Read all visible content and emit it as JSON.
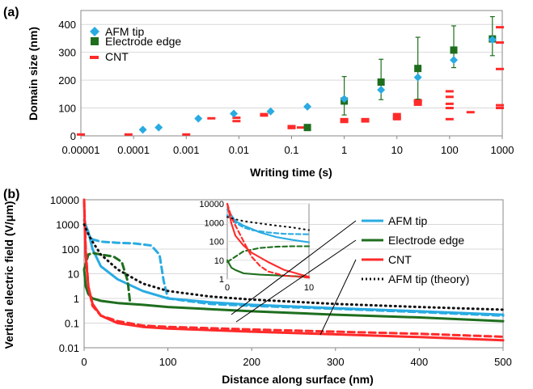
{
  "colors": {
    "afm": "#29abe2",
    "electrode": "#1e6e1e",
    "cnt": "#ff2a2a",
    "theory": "#111111"
  },
  "chart_data": [
    {
      "type": "scatter",
      "panel_label": "(a)",
      "xlabel": "Writing time (s)",
      "ylabel": "Domain size (nm)",
      "xscale": "log",
      "xlim": [
        1e-05,
        1000
      ],
      "ylim": [
        0,
        450
      ],
      "x_ticks": [
        "0.00001",
        "0.0001",
        "0.001",
        "0.01",
        "0.1",
        "1",
        "10",
        "100",
        "1000"
      ],
      "y_ticks": [
        "0",
        "100",
        "200",
        "300",
        "400"
      ],
      "legend": [
        "AFM tip",
        "Electrode edge",
        "CNT"
      ],
      "series": [
        {
          "name": "AFM tip",
          "marker": "diamond",
          "points": [
            [
              0.00015,
              22
            ],
            [
              0.0003,
              30
            ],
            [
              0.0017,
              62
            ],
            [
              0.008,
              80
            ],
            [
              0.04,
              88
            ],
            [
              0.2,
              105
            ],
            [
              1,
              133
            ],
            [
              5,
              165
            ],
            [
              25,
              210
            ],
            [
              120,
              272
            ],
            [
              650,
              345
            ]
          ]
        },
        {
          "name": "Electrode edge",
          "marker": "square",
          "points": [
            [
              0.2,
              30,
              0,
              0
            ],
            [
              1,
              125,
              50,
              88
            ],
            [
              5,
              193,
              63,
              82
            ],
            [
              25,
              242,
              110,
              112
            ],
            [
              120,
              308,
              63,
              87
            ],
            [
              650,
              348,
              60,
              80
            ]
          ]
        },
        {
          "name": "CNT",
          "marker": "dash",
          "points": [
            [
              1e-05,
              5
            ],
            [
              8e-05,
              5
            ],
            [
              0.001,
              5
            ],
            [
              0.003,
              63
            ],
            [
              0.009,
              53
            ],
            [
              0.009,
              65
            ],
            [
              0.03,
              73
            ],
            [
              0.03,
              78
            ],
            [
              0.1,
              28
            ],
            [
              0.1,
              35
            ],
            [
              0.15,
              30
            ],
            [
              1,
              50
            ],
            [
              1,
              60
            ],
            [
              1,
              55
            ],
            [
              2.5,
              52
            ],
            [
              2.5,
              60
            ],
            [
              10,
              60
            ],
            [
              10,
              70
            ],
            [
              10,
              78
            ],
            [
              10,
              65
            ],
            [
              25,
              112
            ],
            [
              25,
              120
            ],
            [
              25,
              128
            ],
            [
              25,
              125
            ],
            [
              100,
              60
            ],
            [
              100,
              100
            ],
            [
              100,
              115
            ],
            [
              100,
              140
            ],
            [
              100,
              160
            ],
            [
              250,
              85
            ],
            [
              900,
              100
            ],
            [
              900,
              110
            ],
            [
              900,
              240
            ],
            [
              900,
              335
            ],
            [
              900,
              390
            ]
          ]
        }
      ]
    },
    {
      "type": "line",
      "panel_label": "(b)",
      "xlabel": "Distance along surface (nm)",
      "ylabel": "Vertical electric field (V/μm)",
      "yscale": "log",
      "xlim": [
        0,
        500
      ],
      "ylim": [
        0.01,
        10000
      ],
      "x_ticks": [
        "0",
        "100",
        "200",
        "300",
        "400",
        "500"
      ],
      "y_ticks": [
        "10000",
        "1000",
        "100",
        "10",
        "1",
        "0.1",
        "0.01"
      ],
      "legend": [
        "AFM tip",
        "Electrode edge",
        "CNT",
        "AFM tip (theory)"
      ],
      "series": [
        {
          "name": "AFM tip",
          "style": "solid",
          "x": [
            0,
            2,
            5,
            10,
            20,
            40,
            70,
            100,
            150,
            200,
            300,
            400,
            500
          ],
          "y": [
            1500,
            900,
            500,
            100,
            20,
            6,
            2,
            1,
            0.7,
            0.55,
            0.4,
            0.3,
            0.22
          ]
        },
        {
          "name": "AFM tip dashed",
          "style": "dashed",
          "x": [
            0,
            5,
            10,
            20,
            40,
            60,
            80,
            90,
            95,
            100,
            150,
            200,
            300,
            400,
            500
          ],
          "y": [
            1500,
            400,
            250,
            200,
            180,
            170,
            140,
            60,
            5,
            1,
            0.6,
            0.5,
            0.38,
            0.28,
            0.2
          ]
        },
        {
          "name": "Electrode edge",
          "style": "solid",
          "x": [
            0,
            2,
            5,
            10,
            20,
            40,
            70,
            100,
            200,
            300,
            400,
            500
          ],
          "y": [
            15,
            3,
            1.5,
            1,
            0.8,
            0.65,
            0.55,
            0.45,
            0.3,
            0.22,
            0.17,
            0.12
          ]
        },
        {
          "name": "Electrode edge dashed",
          "style": "dashed",
          "x": [
            0,
            5,
            10,
            20,
            35,
            45,
            52,
            55
          ],
          "y": [
            15,
            60,
            70,
            60,
            50,
            30,
            5,
            0.6
          ]
        },
        {
          "name": "CNT",
          "style": "solid",
          "x": [
            0,
            1,
            2,
            5,
            10,
            20,
            40,
            70,
            100,
            200,
            300,
            400,
            500
          ],
          "y": [
            10000,
            500,
            50,
            3,
            0.6,
            0.2,
            0.1,
            0.07,
            0.06,
            0.045,
            0.035,
            0.027,
            0.02
          ]
        },
        {
          "name": "CNT dashed",
          "style": "dashed",
          "x": [
            0,
            1,
            2,
            5,
            10,
            20,
            40,
            70,
            100,
            200,
            300,
            400,
            500
          ],
          "y": [
            10000,
            1000,
            80,
            3,
            0.5,
            0.2,
            0.12,
            0.08,
            0.07,
            0.055,
            0.045,
            0.037,
            0.028
          ]
        },
        {
          "name": "AFM tip (theory)",
          "style": "dotted",
          "x": [
            0,
            5,
            10,
            20,
            40,
            70,
            100,
            150,
            200,
            300,
            400,
            500
          ],
          "y": [
            1000,
            400,
            200,
            60,
            15,
            4,
            2,
            1.2,
            0.9,
            0.6,
            0.45,
            0.35
          ]
        }
      ],
      "inset": {
        "xlim": [
          0,
          10
        ],
        "ylim": [
          1,
          10000
        ],
        "x_ticks": [
          "0",
          "10"
        ],
        "y_ticks": [
          "10000",
          "1000",
          "100",
          "10",
          "1"
        ],
        "series": [
          {
            "name": "AFM tip",
            "style": "solid",
            "x": [
              0,
              1,
              2,
              4,
              6,
              8,
              10
            ],
            "y": [
              5000,
              1200,
              700,
              300,
              170,
              120,
              90
            ]
          },
          {
            "name": "AFM tip dashed",
            "style": "dashed",
            "x": [
              0,
              1,
              2,
              3,
              5,
              7,
              10
            ],
            "y": [
              2500,
              1000,
              550,
              400,
              300,
              250,
              240
            ]
          },
          {
            "name": "Electrode edge",
            "style": "solid",
            "x": [
              0,
              0.2,
              0.5,
              1,
              2,
              4,
              7,
              10
            ],
            "y": [
              10,
              7,
              4,
              3,
              2,
              1.7,
              1.5,
              1.3
            ]
          },
          {
            "name": "Electrode edge dashed",
            "style": "dashed",
            "x": [
              0,
              2,
              4,
              6,
              8,
              10
            ],
            "y": [
              8,
              30,
              45,
              52,
              55,
              55
            ]
          },
          {
            "name": "CNT",
            "style": "solid",
            "x": [
              0,
              0.5,
              1,
              2,
              3,
              5,
              7,
              10
            ],
            "y": [
              10000,
              900,
              200,
              60,
              25,
              8,
              3,
              1.3
            ]
          },
          {
            "name": "CNT dashed",
            "style": "dashed",
            "x": [
              0,
              0.5,
              1,
              2,
              3,
              4,
              5,
              7,
              10
            ],
            "y": [
              10000,
              2000,
              700,
              100,
              15,
              5,
              2.5,
              1.5,
              1.2
            ]
          },
          {
            "name": "AFM tip (theory)",
            "style": "dotted",
            "x": [
              0,
              1,
              2,
              4,
              6,
              8,
              10
            ],
            "y": [
              2000,
              1500,
              1200,
              900,
              700,
              550,
              400
            ]
          }
        ]
      }
    }
  ]
}
